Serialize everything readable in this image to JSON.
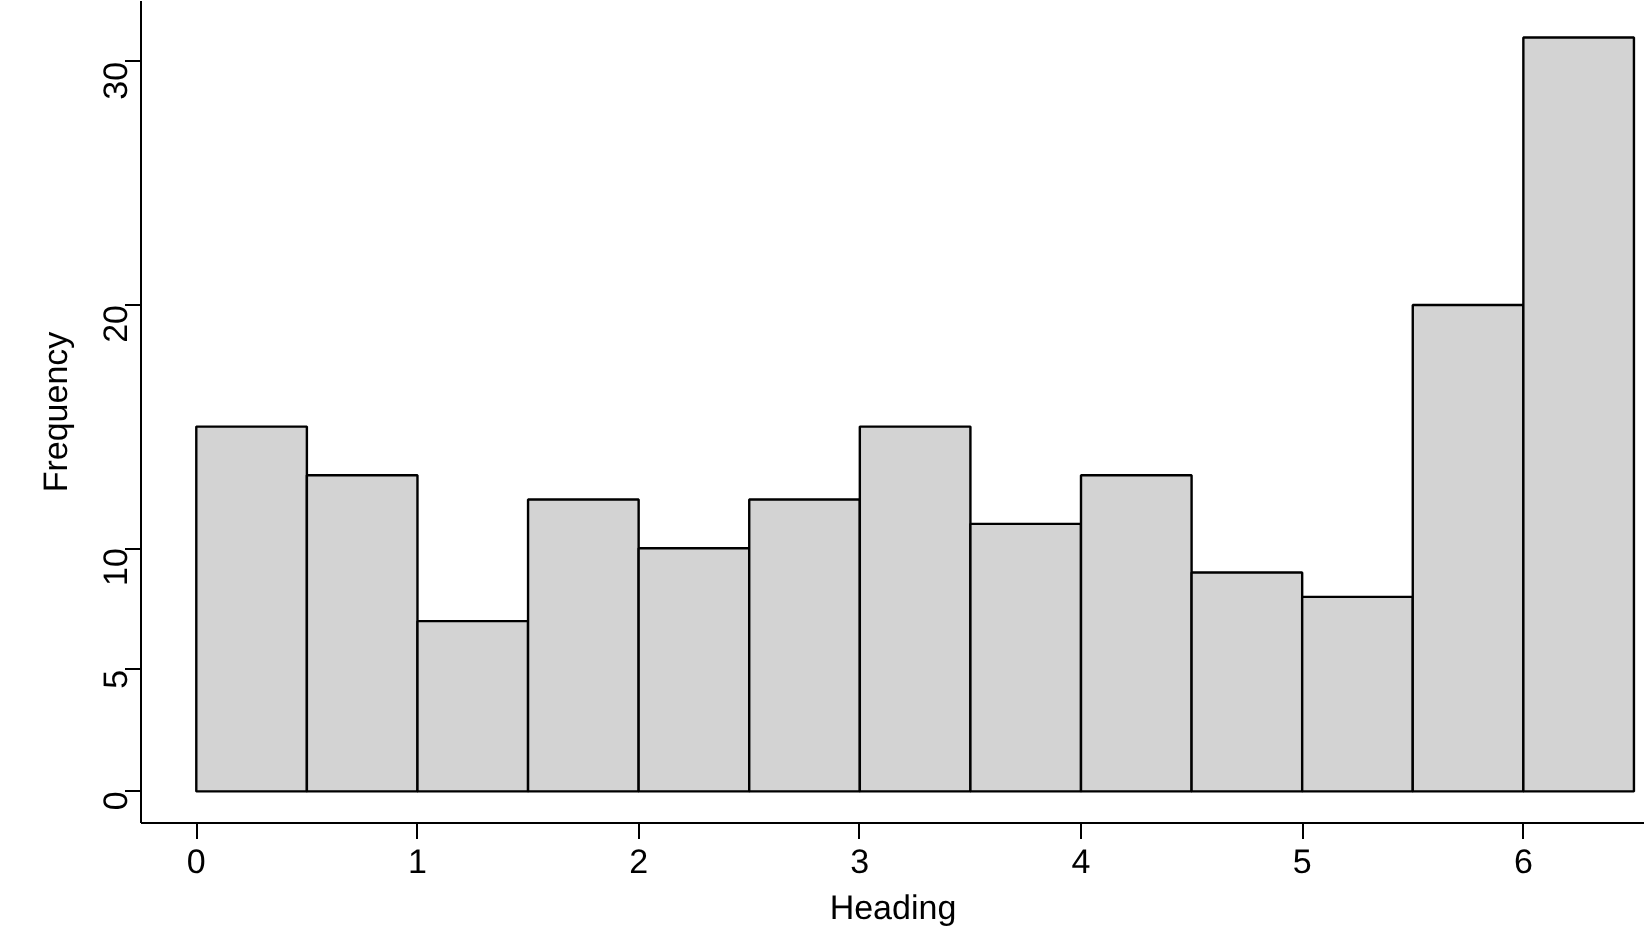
{
  "chart_data": {
    "type": "histogram",
    "xlabel": "Heading",
    "ylabel": "Frequency",
    "bins": [
      0,
      0.5,
      1,
      1.5,
      2,
      2.5,
      3,
      3.5,
      4,
      4.5,
      5,
      5.5,
      6,
      6.5
    ],
    "values": [
      15,
      13,
      7,
      12,
      10,
      12,
      15,
      11,
      13,
      9,
      8,
      20,
      31
    ],
    "color": "#d3d3d3",
    "xlim": [
      -0.25,
      6.55
    ],
    "ylim": [
      -1.3,
      32.5
    ],
    "xticks": [
      0,
      1,
      2,
      3,
      4,
      5,
      6
    ],
    "yticks": [
      0,
      5,
      10,
      20,
      30
    ],
    "grid": false
  }
}
